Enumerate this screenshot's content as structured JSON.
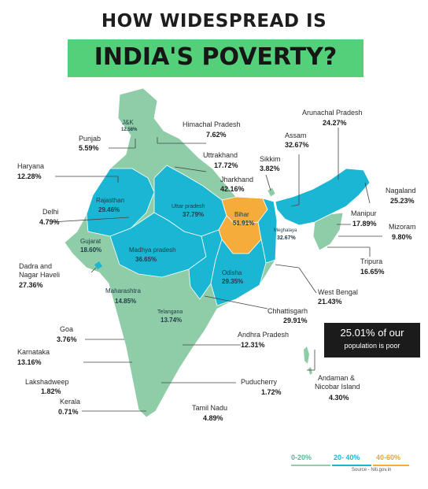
{
  "header": {
    "line1": "HOW WIDESPREAD IS",
    "line2": "INDIA'S POVERTY?"
  },
  "colors": {
    "low": "#8fcda8",
    "mid": "#1bb6d3",
    "high": "#f5ac3a",
    "banner": "#54cf7a",
    "callout": "#1b1b1b"
  },
  "states": [
    {
      "name": "J&K",
      "value": "12.58%",
      "band": "0-20%"
    },
    {
      "name": "Himachal Pradesh",
      "value": "7.62%",
      "band": "0-20%"
    },
    {
      "name": "Punjab",
      "value": "5.59%",
      "band": "0-20%"
    },
    {
      "name": "Uttrakhand",
      "value": "17.72%",
      "band": "0-20%"
    },
    {
      "name": "Haryana",
      "value": "12.28%",
      "band": "0-20%"
    },
    {
      "name": "Sikkim",
      "value": "3.82%",
      "band": "0-20%"
    },
    {
      "name": "Assam",
      "value": "32.67%",
      "band": "20-40%"
    },
    {
      "name": "Arunachal Pradesh",
      "value": "24.27%",
      "band": "20-40%"
    },
    {
      "name": "Jharkhand",
      "value": "42.16%",
      "band": "40-60%"
    },
    {
      "name": "Nagaland",
      "value": "25.23%",
      "band": "20-40%"
    },
    {
      "name": "Delhi",
      "value": "4.79%",
      "band": "0-20%"
    },
    {
      "name": "Rajasthan",
      "value": "29.46%",
      "band": "20-40%"
    },
    {
      "name": "Uttar pradesh",
      "value": "37.79%",
      "band": "20-40%"
    },
    {
      "name": "Bihar",
      "value": "51.91%",
      "band": "40-60%"
    },
    {
      "name": "Manipur",
      "value": "17.89%",
      "band": "0-20%"
    },
    {
      "name": "Meghalaya",
      "value": "32.67%",
      "band": "20-40%"
    },
    {
      "name": "Mizoram",
      "value": "9.80%",
      "band": "0-20%"
    },
    {
      "name": "Gujarat",
      "value": "18.60%",
      "band": "0-20%"
    },
    {
      "name": "Madhya pradesh",
      "value": "36.65%",
      "band": "20-40%"
    },
    {
      "name": "Tripura",
      "value": "16.65%",
      "band": "0-20%"
    },
    {
      "name": "Dadra and Nagar Haveli",
      "value": "27.36%",
      "band": "20-40%"
    },
    {
      "name": "Odisha",
      "value": "29.35%",
      "band": "20-40%"
    },
    {
      "name": "West Bengal",
      "value": "21.43%",
      "band": "20-40%"
    },
    {
      "name": "Maharashtra",
      "value": "14.85%",
      "band": "0-20%"
    },
    {
      "name": "Chhattisgarh",
      "value": "29.91%",
      "band": "20-40%"
    },
    {
      "name": "Telangana",
      "value": "13.74%",
      "band": "0-20%"
    },
    {
      "name": "Goa",
      "value": "3.76%",
      "band": "0-20%"
    },
    {
      "name": "Andhra Pradesh",
      "value": "12.31%",
      "band": "0-20%"
    },
    {
      "name": "Karnataka",
      "value": "13.16%",
      "band": "0-20%"
    },
    {
      "name": "Andaman & Nicobar Island",
      "value": "4.30%",
      "band": "0-20%"
    },
    {
      "name": "Lakshadweep",
      "value": "1.82%",
      "band": "0-20%"
    },
    {
      "name": "Puducherry",
      "value": "1.72%",
      "band": "0-20%"
    },
    {
      "name": "Kerala",
      "value": "0.71%",
      "band": "0-20%"
    },
    {
      "name": "Tamil Nadu",
      "value": "4.89%",
      "band": "0-20%"
    }
  ],
  "labels": {
    "jk": "J&K",
    "jk_v": "12.58%",
    "hp": "Himachal Pradesh",
    "hp_v": "7.62%",
    "punjab": "Punjab",
    "punjab_v": "5.59%",
    "utk": "Uttrakhand",
    "utk_v": "17.72%",
    "haryana": "Haryana",
    "haryana_v": "12.28%",
    "sikkim": "Sikkim",
    "sikkim_v": "3.82%",
    "assam": "Assam",
    "assam_v": "32.67%",
    "arunachal": "Arunachal Pradesh",
    "arunachal_v": "24.27%",
    "jharkhand": "Jharkhand",
    "jharkhand_v": "42.16%",
    "nagaland": "Nagaland",
    "nagaland_v": "25.23%",
    "delhi": "Delhi",
    "delhi_v": "4.79%",
    "raj": "Rajasthan",
    "raj_v": "29.46%",
    "up": "Uttar pradesh",
    "up_v": "37.79%",
    "bihar": "Bihar",
    "bihar_v": "51.91%",
    "manipur": "Manipur",
    "manipur_v": "17.89%",
    "megh": "Meghalaya",
    "megh_v": "32.67%",
    "mizoram": "Mizoram",
    "mizoram_v": "9.80%",
    "gujarat": "Gujarat",
    "gujarat_v": "18.60%",
    "mp": "Madhya pradesh",
    "mp_v": "36.65%",
    "tripura": "Tripura",
    "tripura_v": "16.65%",
    "dadra1": "Dadra and",
    "dadra2": "Nagar Haveli",
    "dadra_v": "27.36%",
    "odisha": "Odisha",
    "odisha_v": "29.35%",
    "wb": "West Bengal",
    "wb_v": "21.43%",
    "maha": "Maharashtra",
    "maha_v": "14.85%",
    "chh": "Chhattisgarh",
    "chh_v": "29.91%",
    "tel": "Telangana",
    "tel_v": "13.74%",
    "goa": "Goa",
    "goa_v": "3.76%",
    "ap": "Andhra Pradesh",
    "ap_v": "12.31%",
    "kar": "Karnataka",
    "kar_v": "13.16%",
    "andaman1": "Andaman &",
    "andaman2": "Nicobar Island",
    "andaman_v": "4.30%",
    "laksh": "Lakshadweep",
    "laksh_v": "1.82%",
    "pud": "Puducherry",
    "pud_v": "1.72%",
    "kerala": "Kerala",
    "kerala_v": "0.71%",
    "tn": "Tamil Nadu",
    "tn_v": "4.89%"
  },
  "callout": {
    "line1": "25.01% of our",
    "line2": "population is poor"
  },
  "legend": {
    "low": "0-20%",
    "mid": "20- 40%",
    "high": "40-60%"
  },
  "source": "Source - Niti.gov.in"
}
